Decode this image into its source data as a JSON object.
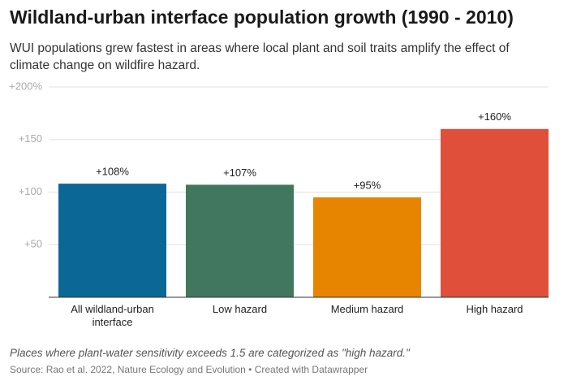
{
  "chart_data": {
    "type": "bar",
    "title": "Wildland-urban interface population growth (1990 - 2010)",
    "subtitle": "WUI populations grew fastest in areas where local plant and soil traits amplify the effect of climate change on wildfire hazard.",
    "categories": [
      "All wildland-urban interface",
      "Low hazard",
      "Medium hazard",
      "High hazard"
    ],
    "values": [
      108,
      107,
      95,
      160
    ],
    "value_labels": [
      "+108%",
      "+107%",
      "+95%",
      "+160%"
    ],
    "colors": [
      "#0b6796",
      "#41775f",
      "#e88500",
      "#df4f3a"
    ],
    "ylim": [
      0,
      200
    ],
    "yticks": [
      {
        "value": 50,
        "label": "+50"
      },
      {
        "value": 100,
        "label": "+100"
      },
      {
        "value": 150,
        "label": "+150"
      },
      {
        "value": 200,
        "label": "+200%"
      }
    ],
    "grid": true,
    "note": "Places where plant-water sensitivity exceeds 1.5 are categorized as \"high hazard.\"",
    "source": "Source: Rao et al. 2022, Nature Ecology and Evolution • Created with Datawrapper"
  }
}
